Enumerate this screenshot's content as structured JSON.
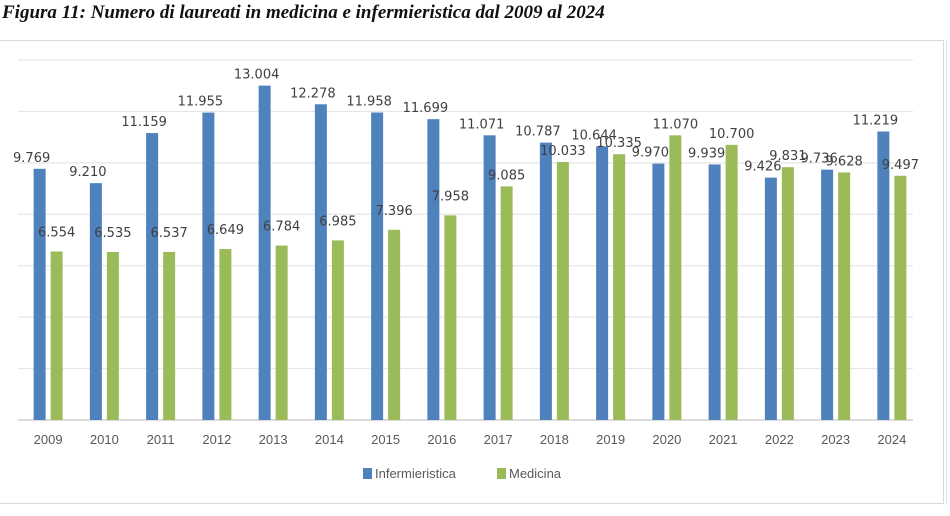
{
  "figure": {
    "title": "Figura 11: Numero di laureati in medicina e infermieristica dal 2009 al 2024"
  },
  "chart_data": {
    "type": "bar",
    "title": "Figura 11: Numero di laureati in medicina e infermieristica dal 2009 al 2024",
    "xlabel": "",
    "ylabel": "",
    "categories": [
      "2009",
      "2010",
      "2011",
      "2012",
      "2013",
      "2014",
      "2015",
      "2016",
      "2017",
      "2018",
      "2019",
      "2020",
      "2021",
      "2022",
      "2023",
      "2024"
    ],
    "series": [
      {
        "name": "Infermieristica",
        "color": "#4f81bd",
        "values": [
          9769,
          9210,
          11159,
          11955,
          13004,
          12278,
          11958,
          11699,
          11071,
          10787,
          10644,
          9970,
          9939,
          9426,
          9736,
          11219
        ],
        "labels": [
          "9.769",
          "9.210",
          "11.159",
          "11.955",
          "13.004",
          "12.278",
          "11.958",
          "11.699",
          "11.071",
          "10.787",
          "10.644",
          "9.970",
          "9.939",
          "9.426",
          "9.736",
          "11.219"
        ]
      },
      {
        "name": "Medicina",
        "color": "#9bbb59",
        "values": [
          6554,
          6535,
          6537,
          6649,
          6784,
          6985,
          7396,
          7958,
          9085,
          10033,
          10335,
          11070,
          10700,
          9831,
          9628,
          9497
        ],
        "labels": [
          "6.554",
          "6.535",
          "6.537",
          "6.649",
          "6.784",
          "6.985",
          "7.396",
          "7.958",
          "9.085",
          "10.033",
          "10.335",
          "11.070",
          "10.700",
          "9.831",
          "9.628",
          "9.497"
        ]
      }
    ],
    "ylim": [
      0,
      14000
    ],
    "y_gridline_step": 2000,
    "y_tick_labels_visible": false,
    "grid": true,
    "legend": {
      "position": "bottom",
      "entries": [
        "Infermieristica",
        "Medicina"
      ]
    }
  }
}
